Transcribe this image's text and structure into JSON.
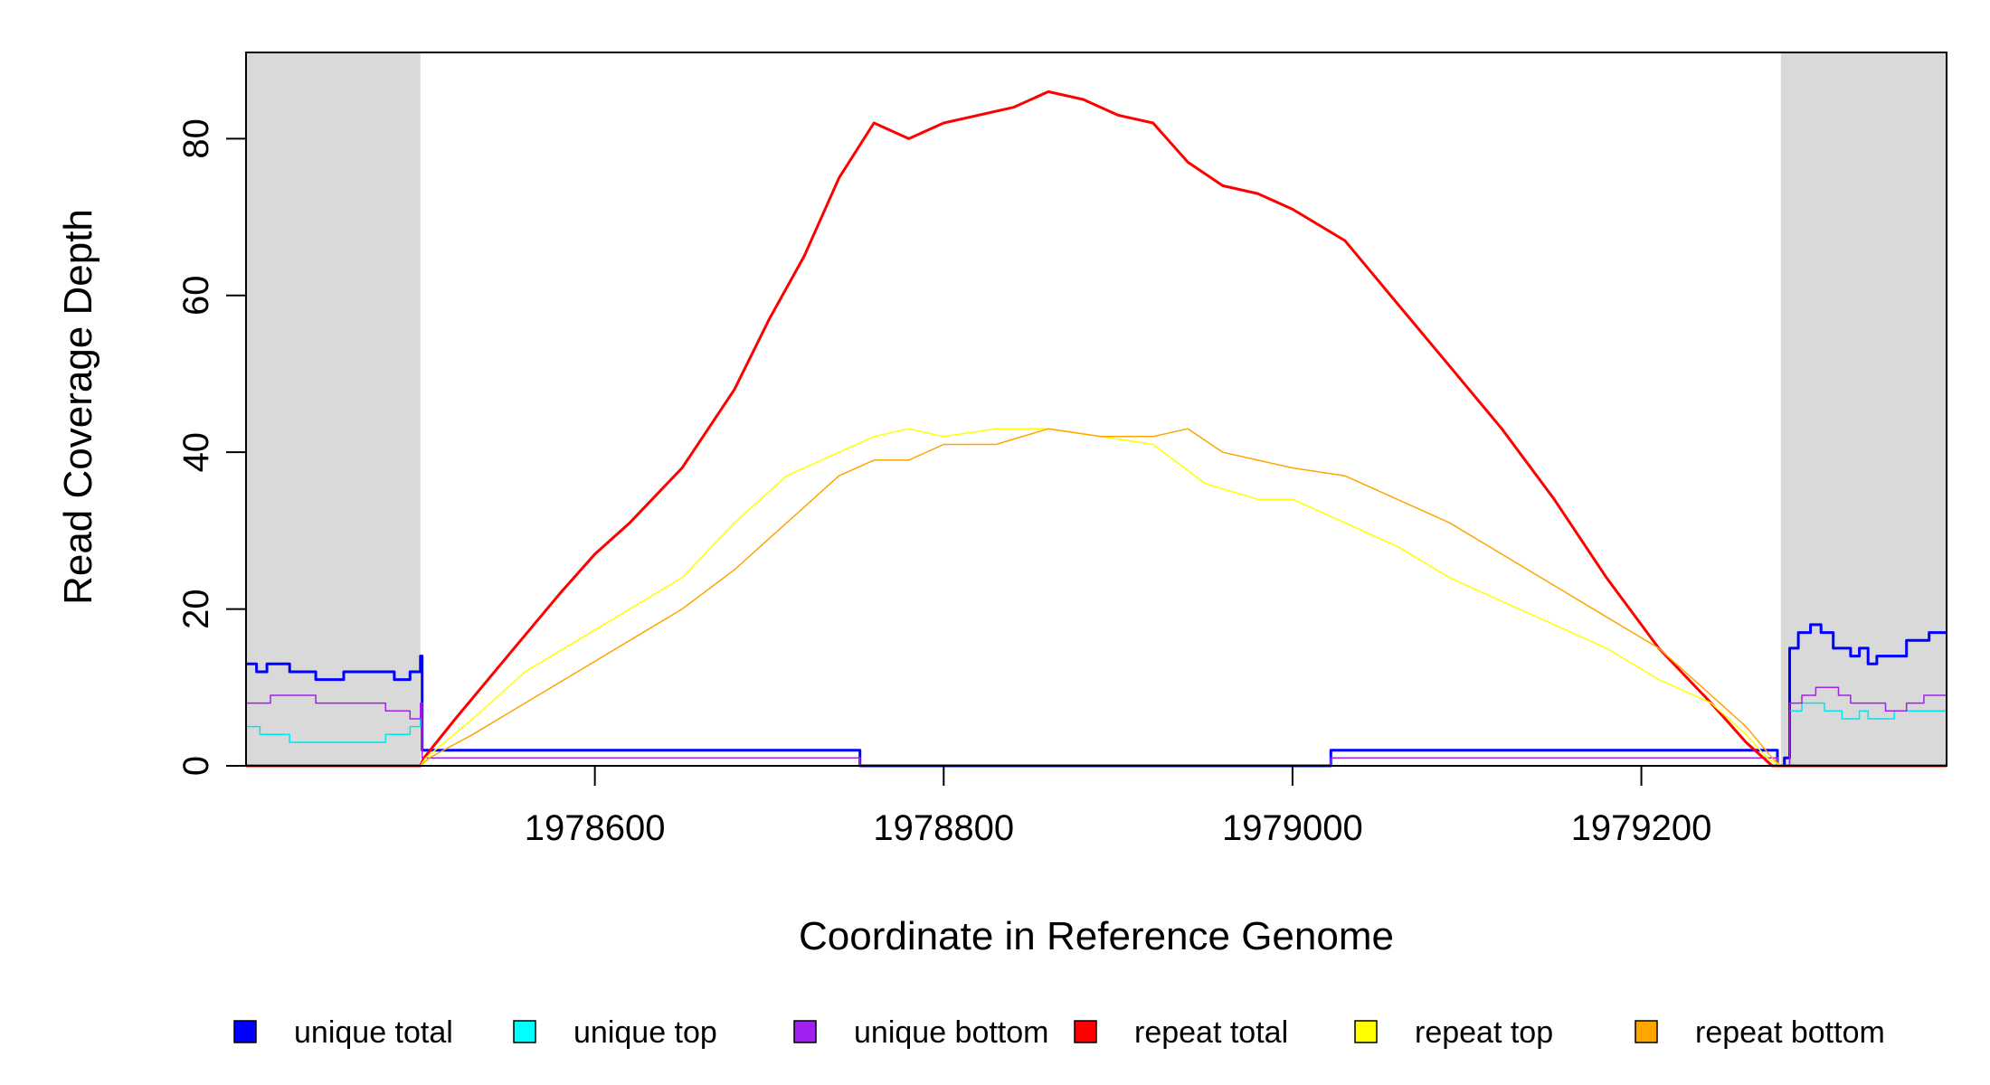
{
  "chart_data": {
    "type": "line",
    "title": "",
    "xlabel": "Coordinate in Reference Genome",
    "ylabel": "Read Coverage Depth",
    "xlim": [
      1978400,
      1979375
    ],
    "ylim": [
      0,
      91
    ],
    "xticks": [
      1978600,
      1978800,
      1979000,
      1979200
    ],
    "yticks": [
      0,
      20,
      40,
      60,
      80
    ],
    "xtick_labels": [
      "1978600",
      "1978800",
      "1979000",
      "1979200"
    ],
    "ytick_labels": [
      "0",
      "20",
      "40",
      "60",
      "80"
    ],
    "shaded_regions": [
      {
        "x0": 1978400,
        "x1": 1978500,
        "color": "#d9d9d9"
      },
      {
        "x0": 1979280,
        "x1": 1979375,
        "color": "#d9d9d9"
      }
    ],
    "series": [
      {
        "name": "unique total",
        "color": "#0000ff",
        "width": 3,
        "step": true,
        "x": [
          1978400,
          1978406,
          1978412,
          1978425,
          1978440,
          1978456,
          1978485,
          1978494,
          1978500,
          1978501,
          1978750,
          1978752,
          1979020,
          1979022,
          1979272,
          1979278,
          1979282,
          1979285,
          1979290,
          1979297,
          1979303,
          1979310,
          1979320,
          1979325,
          1979330,
          1979335,
          1979345,
          1979352,
          1979365,
          1979375
        ],
        "values": [
          13,
          12,
          13,
          12,
          11,
          12,
          11,
          12,
          14,
          2,
          2,
          0,
          0,
          2,
          2,
          0,
          1,
          15,
          17,
          18,
          17,
          15,
          14,
          15,
          13,
          14,
          14,
          16,
          17,
          17
        ]
      },
      {
        "name": "unique top",
        "color": "#00e5ee",
        "width": 1.5,
        "step": true,
        "x": [
          1978400,
          1978408,
          1978425,
          1978450,
          1978480,
          1978494,
          1978500,
          1978501,
          1978750,
          1978752,
          1979020,
          1979022,
          1979272,
          1979278,
          1979282,
          1979285,
          1979292,
          1979305,
          1979315,
          1979325,
          1979330,
          1979345,
          1979375
        ],
        "values": [
          5,
          4,
          3,
          3,
          4,
          5,
          6,
          1,
          1,
          0,
          0,
          1,
          1,
          0,
          0,
          7,
          8,
          7,
          6,
          7,
          6,
          7,
          7
        ]
      },
      {
        "name": "unique bottom",
        "color": "#a020f0",
        "width": 1.5,
        "step": true,
        "x": [
          1978400,
          1978414,
          1978440,
          1978480,
          1978494,
          1978500,
          1978501,
          1978750,
          1978752,
          1979020,
          1979022,
          1979272,
          1979278,
          1979282,
          1979285,
          1979292,
          1979300,
          1979313,
          1979320,
          1979340,
          1979352,
          1979362,
          1979375
        ],
        "values": [
          8,
          9,
          8,
          7,
          6,
          8,
          1,
          1,
          0,
          0,
          1,
          1,
          0,
          0,
          8,
          9,
          10,
          9,
          8,
          7,
          8,
          9,
          10
        ]
      },
      {
        "name": "repeat total",
        "color": "#ff0000",
        "width": 3,
        "step": false,
        "x": [
          1978400,
          1978500,
          1978502,
          1978520,
          1978550,
          1978580,
          1978600,
          1978620,
          1978650,
          1978680,
          1978700,
          1978720,
          1978740,
          1978760,
          1978780,
          1978800,
          1978820,
          1978840,
          1978860,
          1978880,
          1978900,
          1978920,
          1978940,
          1978960,
          1978980,
          1979000,
          1979030,
          1979060,
          1979090,
          1979120,
          1979150,
          1979180,
          1979210,
          1979240,
          1979260,
          1979275,
          1979280,
          1979375
        ],
        "values": [
          0,
          0,
          1,
          6,
          14,
          22,
          27,
          31,
          38,
          48,
          57,
          65,
          75,
          82,
          80,
          82,
          83,
          84,
          86,
          85,
          83,
          82,
          77,
          74,
          73,
          71,
          67,
          59,
          51,
          43,
          34,
          24,
          15,
          8,
          3,
          0,
          0,
          0
        ]
      },
      {
        "name": "repeat top",
        "color": "#ffff00",
        "width": 1.5,
        "step": false,
        "x": [
          1978400,
          1978500,
          1978503,
          1978530,
          1978560,
          1978590,
          1978620,
          1978650,
          1978680,
          1978710,
          1978740,
          1978760,
          1978780,
          1978800,
          1978830,
          1978860,
          1978890,
          1978920,
          1978950,
          1978980,
          1979000,
          1979030,
          1979060,
          1979090,
          1979120,
          1979150,
          1979180,
          1979210,
          1979240,
          1979260,
          1979272,
          1979280,
          1979375
        ],
        "values": [
          0,
          0,
          1,
          6,
          12,
          16,
          20,
          24,
          31,
          37,
          40,
          42,
          43,
          42,
          43,
          43,
          42,
          41,
          36,
          34,
          34,
          31,
          28,
          24,
          21,
          18,
          15,
          11,
          8,
          4,
          1,
          0,
          0
        ]
      },
      {
        "name": "repeat bottom",
        "color": "#ffa500",
        "width": 1.5,
        "step": false,
        "x": [
          1978400,
          1978500,
          1978505,
          1978530,
          1978560,
          1978590,
          1978620,
          1978650,
          1978680,
          1978710,
          1978740,
          1978760,
          1978780,
          1978800,
          1978830,
          1978860,
          1978890,
          1978920,
          1978940,
          1978960,
          1978980,
          1979000,
          1979030,
          1979060,
          1979090,
          1979120,
          1979150,
          1979180,
          1979210,
          1979240,
          1979260,
          1979275,
          1979280,
          1979375
        ],
        "values": [
          0,
          0,
          1,
          4,
          8,
          12,
          16,
          20,
          25,
          31,
          37,
          39,
          39,
          41,
          41,
          43,
          42,
          42,
          43,
          40,
          39,
          38,
          37,
          34,
          31,
          27,
          23,
          19,
          15,
          9,
          5,
          1,
          0,
          0
        ]
      }
    ],
    "legend": {
      "position": "bottom",
      "entries": [
        {
          "label": "unique total",
          "color": "#0000ff"
        },
        {
          "label": "unique top",
          "color": "#00ffff"
        },
        {
          "label": "unique bottom",
          "color": "#a020f0"
        },
        {
          "label": "repeat total",
          "color": "#ff0000"
        },
        {
          "label": "repeat top",
          "color": "#ffff00"
        },
        {
          "label": "repeat bottom",
          "color": "#ffa500"
        }
      ]
    }
  }
}
